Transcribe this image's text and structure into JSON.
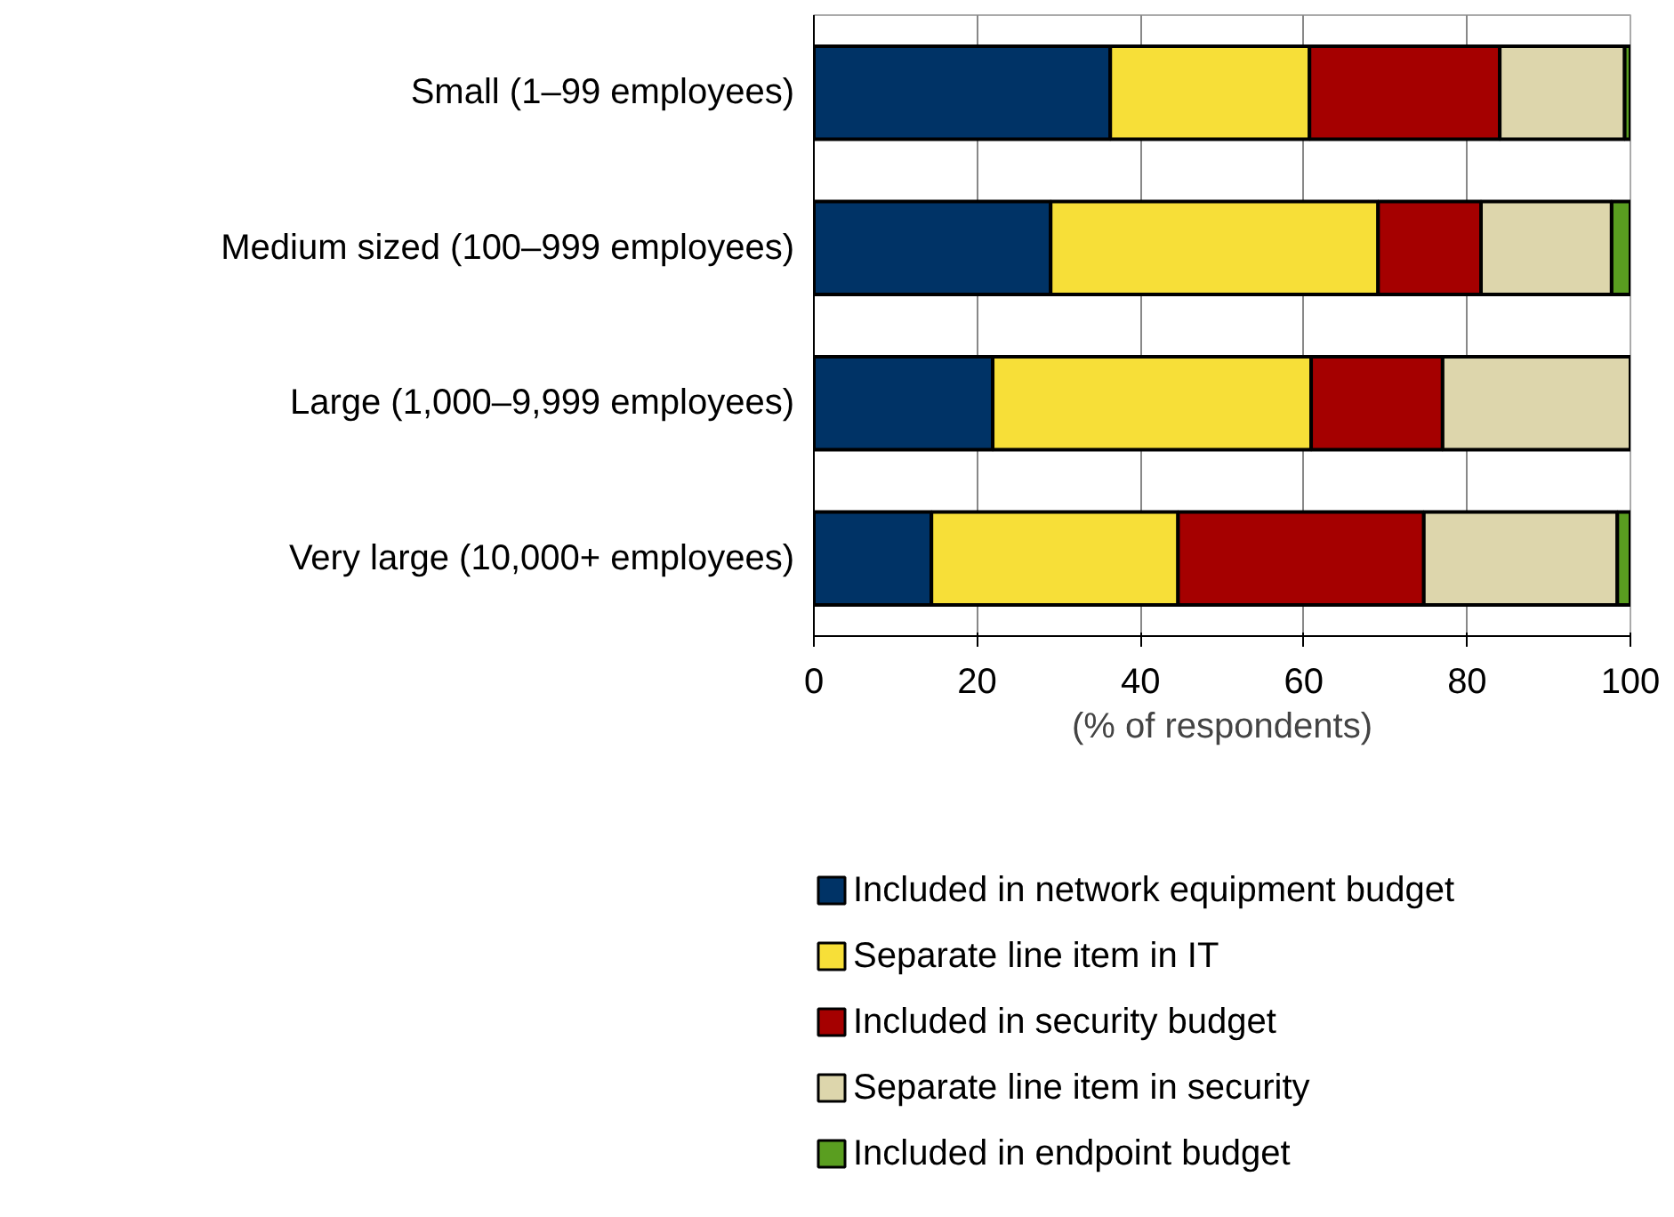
{
  "chart_data": {
    "type": "bar",
    "orientation": "horizontal",
    "stacked": true,
    "categories": [
      "Small (1–99 employees)",
      "Medium sized (100–999 employees)",
      "Large (1,000–9,999 employees)",
      "Very large (10,000+ employees)"
    ],
    "series": [
      {
        "name": "Included in network equipment budget",
        "color": "#003366",
        "values": [
          36.3,
          29.0,
          21.9,
          14.4
        ]
      },
      {
        "name": "Separate line item in IT",
        "color": "#f7df38",
        "values": [
          24.4,
          40.1,
          39.0,
          30.2
        ]
      },
      {
        "name": "Included in security budget",
        "color": "#a50000",
        "values": [
          23.3,
          12.6,
          16.1,
          30.1
        ]
      },
      {
        "name": "Separate line item in security",
        "color": "#ddd6ac",
        "values": [
          15.3,
          16.0,
          23.0,
          23.7
        ]
      },
      {
        "name": "Included in endpoint budget",
        "color": "#5a9e20",
        "values": [
          0.7,
          2.3,
          0,
          1.6
        ]
      }
    ],
    "xlabel": "(% of respondents)",
    "xlim": [
      0,
      100
    ],
    "xticks": [
      0,
      20,
      40,
      60,
      80,
      100
    ],
    "grid": "x",
    "legend": "bottom"
  }
}
